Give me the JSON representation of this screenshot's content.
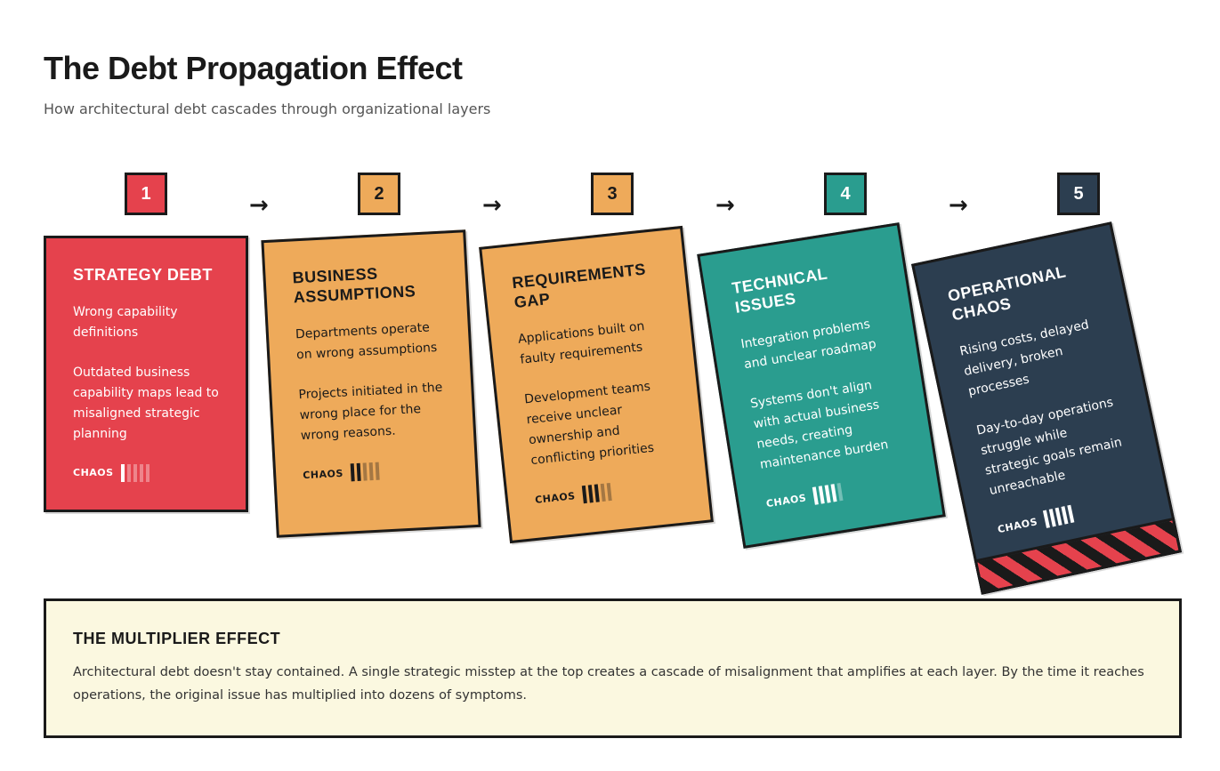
{
  "title": "The Debt Propagation Effect",
  "subtitle": "How architectural debt cascades through organizational layers",
  "arrow_glyph": "→",
  "chaos_max": 5,
  "stages": [
    {
      "number": "1",
      "title": "Strategy Debt",
      "lead": "Wrong capability definitions",
      "detail": "Outdated business capability maps lead to misaligned strategic planning",
      "chaos_label": "CHAOS",
      "chaos_level": 1,
      "color": "#E5424D",
      "text_color": "#ffffff"
    },
    {
      "number": "2",
      "title": "Business Assumptions",
      "lead": "Departments operate on wrong assumptions",
      "detail": "Projects initiated in the wrong place for the wrong reasons.",
      "chaos_label": "CHAOS",
      "chaos_level": 2,
      "color": "#EEAA5A",
      "text_color": "#1a1a1a"
    },
    {
      "number": "3",
      "title": "Requirements Gap",
      "lead": "Applications built on faulty requirements",
      "detail": "Development teams receive unclear ownership and conflicting priorities",
      "chaos_label": "CHAOS",
      "chaos_level": 3,
      "color": "#EEAA5A",
      "text_color": "#1a1a1a"
    },
    {
      "number": "4",
      "title": "Technical Issues",
      "lead": "Integration problems and unclear roadmap",
      "detail": "Systems don't align with actual business needs, creating maintenance burden",
      "chaos_label": "CHAOS",
      "chaos_level": 4,
      "color": "#2A9D8F",
      "text_color": "#ffffff"
    },
    {
      "number": "5",
      "title": "Operational Chaos",
      "lead": "Rising costs, delayed delivery, broken processes",
      "detail": "Day-to-day operations struggle while strategic goals remain unreachable",
      "chaos_label": "CHAOS",
      "chaos_level": 5,
      "color": "#2C3E50",
      "text_color": "#ffffff"
    }
  ],
  "multiplier": {
    "title": "THE MULTIPLIER EFFECT",
    "text": "Architectural debt doesn't stay contained. A single strategic misstep at the top creates a cascade of misalignment that amplifies at each layer. By the time it reaches operations, the original issue has multiplied into dozens of symptoms."
  }
}
